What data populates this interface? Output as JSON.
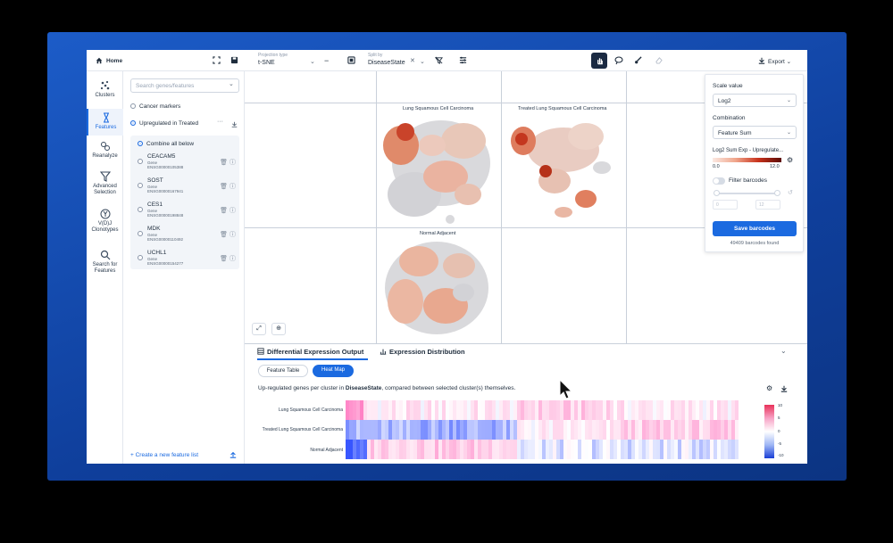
{
  "topbar": {
    "home_label": "Home",
    "projection_label": "Projection type",
    "projection_value": "t-SNE",
    "split_label": "Split by",
    "split_value": "DiseaseState",
    "export_label": "Export"
  },
  "rail": {
    "items": [
      {
        "label": "Clusters"
      },
      {
        "label": "Features"
      },
      {
        "label": "Reanalyze"
      },
      {
        "label": "Advanced Selection"
      },
      {
        "label": "V(D)J Clonotypes"
      },
      {
        "label": "Search for Features"
      }
    ]
  },
  "features": {
    "search_placeholder": "Search genes/features",
    "list1": "Cancer markers",
    "list2": "Upregulated in Treated",
    "combine_label": "Combine all below",
    "genes": [
      {
        "name": "CEACAM5",
        "type": "Gene",
        "id": "ENSG00000105388"
      },
      {
        "name": "SOST",
        "type": "Gene",
        "id": "ENSG00000167941"
      },
      {
        "name": "CES1",
        "type": "Gene",
        "id": "ENSG00000198848"
      },
      {
        "name": "MDK",
        "type": "Gene",
        "id": "ENSG00000110492"
      },
      {
        "name": "UCHL1",
        "type": "Gene",
        "id": "ENSG00000154277"
      }
    ],
    "create_label": "+ Create a new feature list"
  },
  "plots": {
    "titles": [
      "Lung Squamous Cell Carcinoma",
      "Treated Lung Squamous Cell Carcinoma",
      "Normal Adjacent"
    ]
  },
  "scale": {
    "scale_value_label": "Scale value",
    "scale_value": "Log2",
    "combination_label": "Combination",
    "combination_value": "Feature Sum",
    "legend_title": "Log2 Sum Exp - Upregulate...",
    "min": "0.0",
    "max": "12.0",
    "filter_label": "Filter barcodes",
    "filter_min": "0",
    "filter_max": "12",
    "save_label": "Save barcodes",
    "found": "49409 barcodes found"
  },
  "bottom": {
    "tab1": "Differential Expression Output",
    "tab2": "Expression Distribution",
    "pill1": "Feature Table",
    "pill2": "Heat Map",
    "desc_pre": "Up-regulated genes per cluster in ",
    "desc_bold": "DiseaseState",
    "desc_post": ", compared between selected cluster(s) themselves.",
    "rows": [
      "Lung Squamous Cell Carcinoma",
      "Treated Lung Squamous Cell Carcinoma",
      "Normal Adjacent"
    ],
    "scale_ticks": [
      "10",
      "5",
      "0",
      "-5",
      "-10"
    ]
  },
  "colors": {
    "accent": "#1b6ae0",
    "background": "#0f3f9c"
  }
}
